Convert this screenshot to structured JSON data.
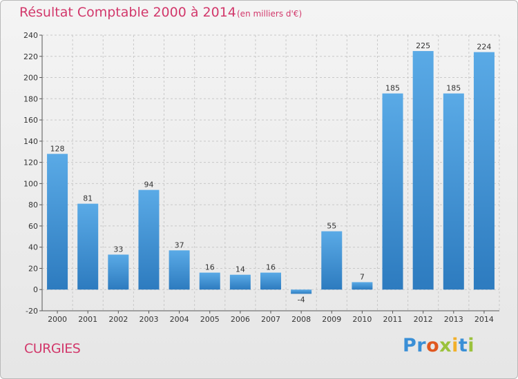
{
  "title": "Résultat Comptable 2000 à 2014",
  "subtitle": "(en milliers d'€)",
  "location": "CURGIES",
  "brand": {
    "p1": "Pr",
    "p2": "o",
    "p3": "x",
    "p4": "i",
    "p5": "t",
    "p6": "i"
  },
  "colors": {
    "bar": "#3a8fd6",
    "title": "#d2386b",
    "grid": "#c8c8c8"
  },
  "chart_data": {
    "type": "bar",
    "title": "Résultat Comptable 2000 à 2014",
    "subtitle": "(en milliers d'€)",
    "xlabel": "",
    "ylabel": "",
    "categories": [
      "2000",
      "2001",
      "2002",
      "2003",
      "2004",
      "2005",
      "2006",
      "2007",
      "2008",
      "2009",
      "2010",
      "2011",
      "2012",
      "2013",
      "2014"
    ],
    "values": [
      128,
      81,
      33,
      94,
      37,
      16,
      14,
      16,
      -4,
      55,
      7,
      185,
      225,
      185,
      224
    ],
    "ylim": [
      -20,
      240
    ],
    "yticks": [
      -20,
      0,
      20,
      40,
      60,
      80,
      100,
      120,
      140,
      160,
      180,
      200,
      220,
      240
    ],
    "grid": true,
    "data_labels": true
  }
}
